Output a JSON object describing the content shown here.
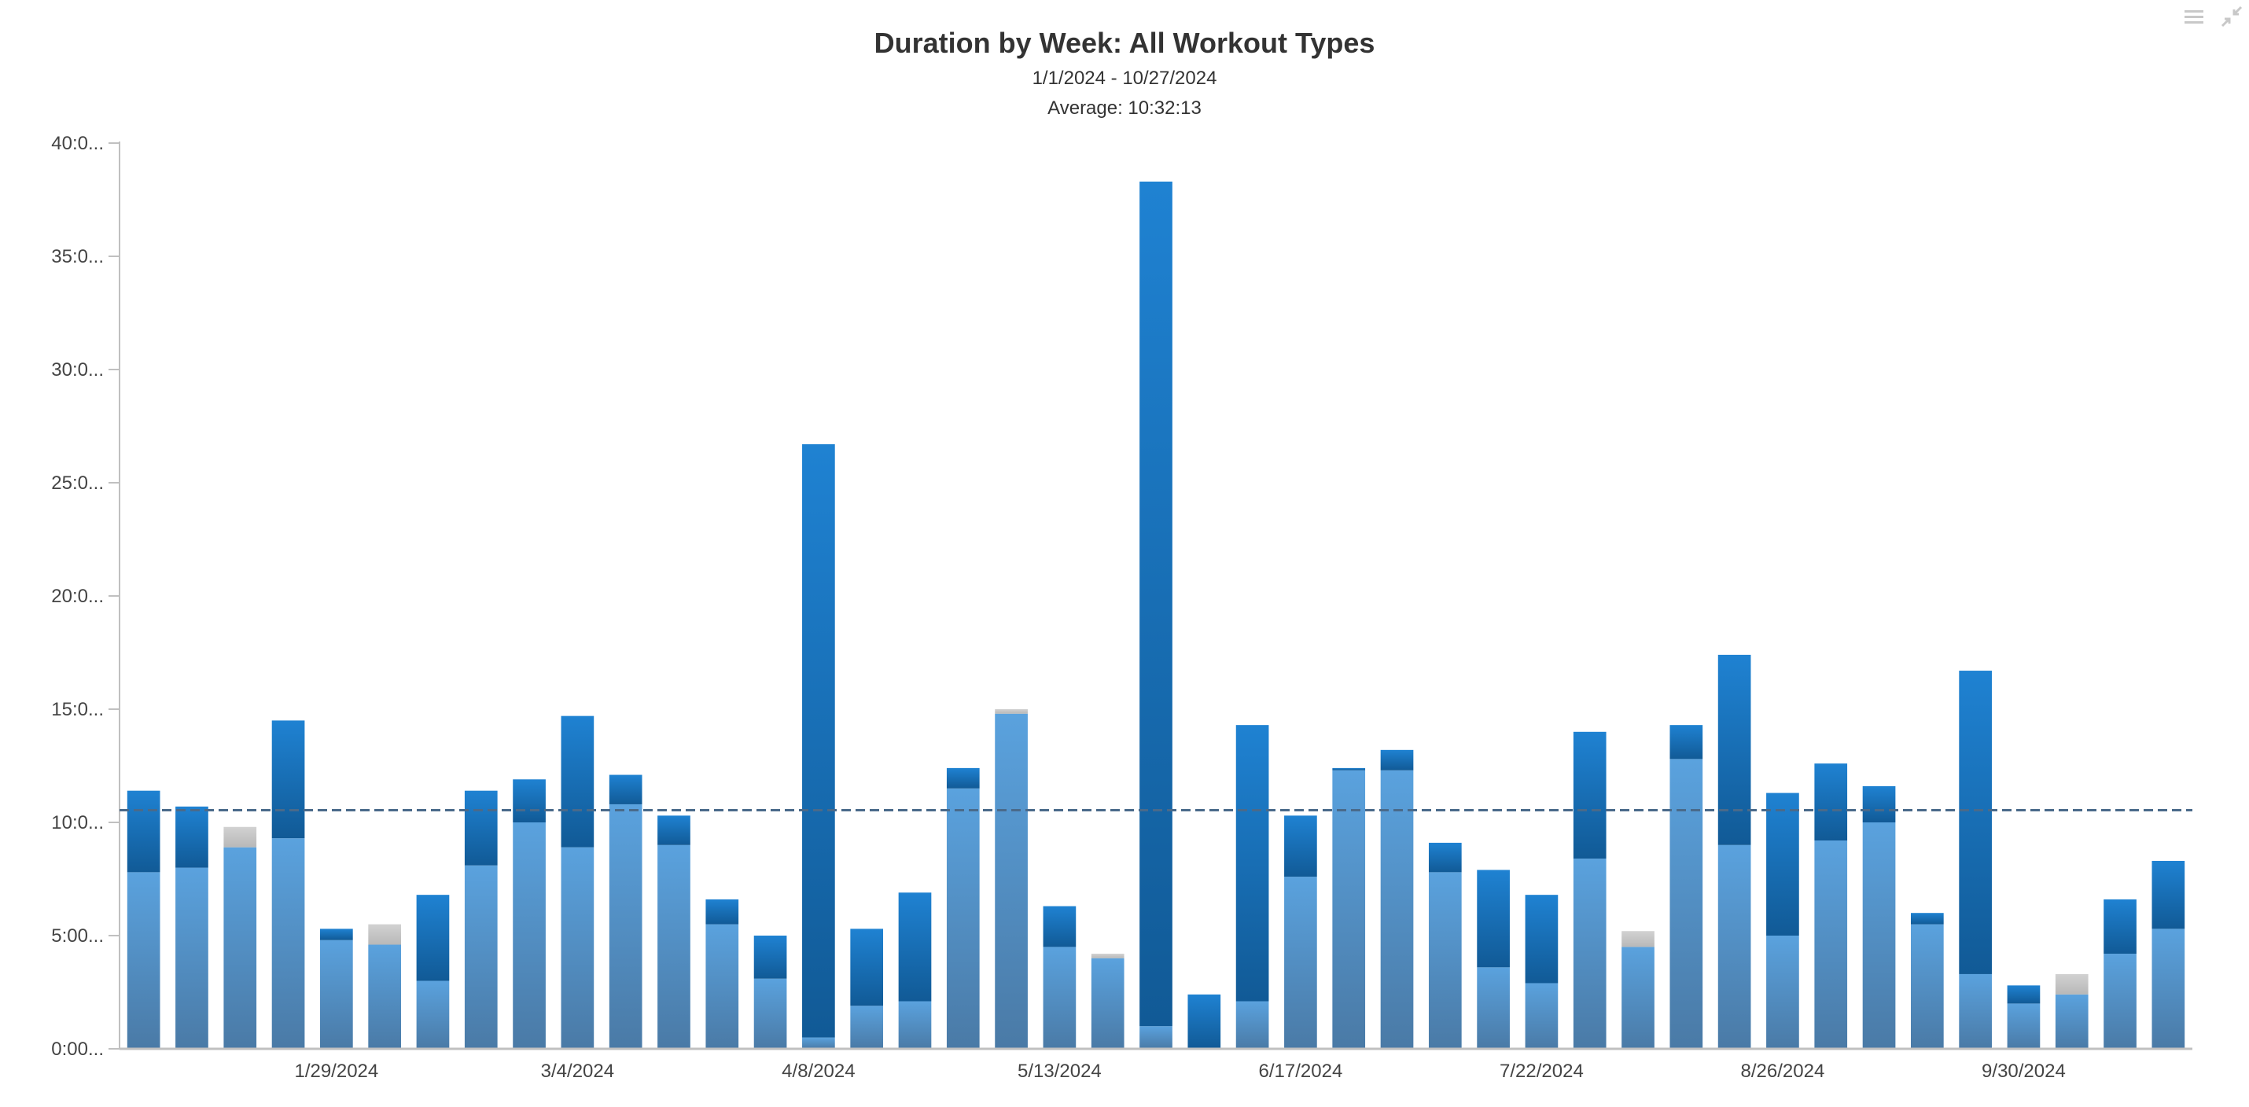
{
  "chart_data": {
    "type": "bar",
    "stacked": true,
    "title": "Duration by Week: All Workout Types",
    "subtitle_range": "1/1/2024 - 10/27/2024",
    "subtitle_average": "Average: 10:32:13",
    "average_line_value": 10.537,
    "ylim": [
      0,
      40
    ],
    "y_ticks": [
      {
        "value": 0,
        "label": "0:00..."
      },
      {
        "value": 5,
        "label": "5:00..."
      },
      {
        "value": 10,
        "label": "10:0..."
      },
      {
        "value": 15,
        "label": "15:0..."
      },
      {
        "value": 20,
        "label": "20:0..."
      },
      {
        "value": 25,
        "label": "25:0..."
      },
      {
        "value": 30,
        "label": "30:0..."
      },
      {
        "value": 35,
        "label": "35:0..."
      },
      {
        "value": 40,
        "label": "40:0..."
      }
    ],
    "x_ticks": [
      {
        "index": 4,
        "label": "1/29/2024"
      },
      {
        "index": 9,
        "label": "3/4/2024"
      },
      {
        "index": 14,
        "label": "4/8/2024"
      },
      {
        "index": 19,
        "label": "5/13/2024"
      },
      {
        "index": 24,
        "label": "6/17/2024"
      },
      {
        "index": 29,
        "label": "7/22/2024"
      },
      {
        "index": 34,
        "label": "8/26/2024"
      },
      {
        "index": 39,
        "label": "9/30/2024"
      }
    ],
    "grid": false,
    "legend": "none",
    "week_count": 43,
    "series": [
      {
        "values": [
          7.8,
          8.0,
          8.9,
          9.3,
          4.8,
          4.6,
          3.0,
          8.1,
          10.0,
          8.9,
          10.8,
          9.0,
          5.5,
          3.1,
          0.5,
          1.9,
          2.1,
          11.5,
          14.8,
          4.5,
          4.0,
          1.0,
          0,
          2.1,
          7.6,
          12.3,
          12.3,
          7.8,
          3.6,
          2.9,
          8.4,
          4.5,
          12.8,
          9.0,
          5.0,
          9.2,
          10.0,
          5.5,
          3.3,
          2.0,
          2.4,
          4.2,
          5.3
        ],
        "color": "#5b9bd5"
      },
      {
        "values": [
          3.6,
          2.7,
          0,
          5.2,
          0.5,
          0,
          3.8,
          3.3,
          1.9,
          5.8,
          1.3,
          1.3,
          1.1,
          1.9,
          26.2,
          3.4,
          4.8,
          0.9,
          0,
          1.8,
          0,
          37.3,
          2.4,
          12.2,
          2.7,
          0.1,
          0.9,
          1.3,
          4.3,
          3.9,
          5.6,
          0,
          1.5,
          8.4,
          6.3,
          3.4,
          1.6,
          0.5,
          13.4,
          0.8,
          0,
          2.4,
          3.0
        ],
        "color": "#1f78c8"
      },
      {
        "values": [
          0,
          0,
          0.9,
          0,
          0,
          0.9,
          0,
          0,
          0,
          0,
          0,
          0,
          0,
          0,
          0,
          0,
          0,
          0,
          0.2,
          0,
          0.2,
          0,
          0,
          0,
          0,
          0,
          0,
          0,
          0,
          0,
          0,
          0.7,
          0,
          0,
          0,
          0,
          0,
          0,
          0,
          0,
          0.9,
          0,
          0
        ],
        "color": "#c4c4c4"
      }
    ],
    "colors": {
      "axis": "#c0c0c0",
      "average_line": "#4a6a8a"
    }
  },
  "toolbar": {
    "menu_icon": "hamburger-menu-icon",
    "resize_icon": "collapse-arrows-icon"
  }
}
